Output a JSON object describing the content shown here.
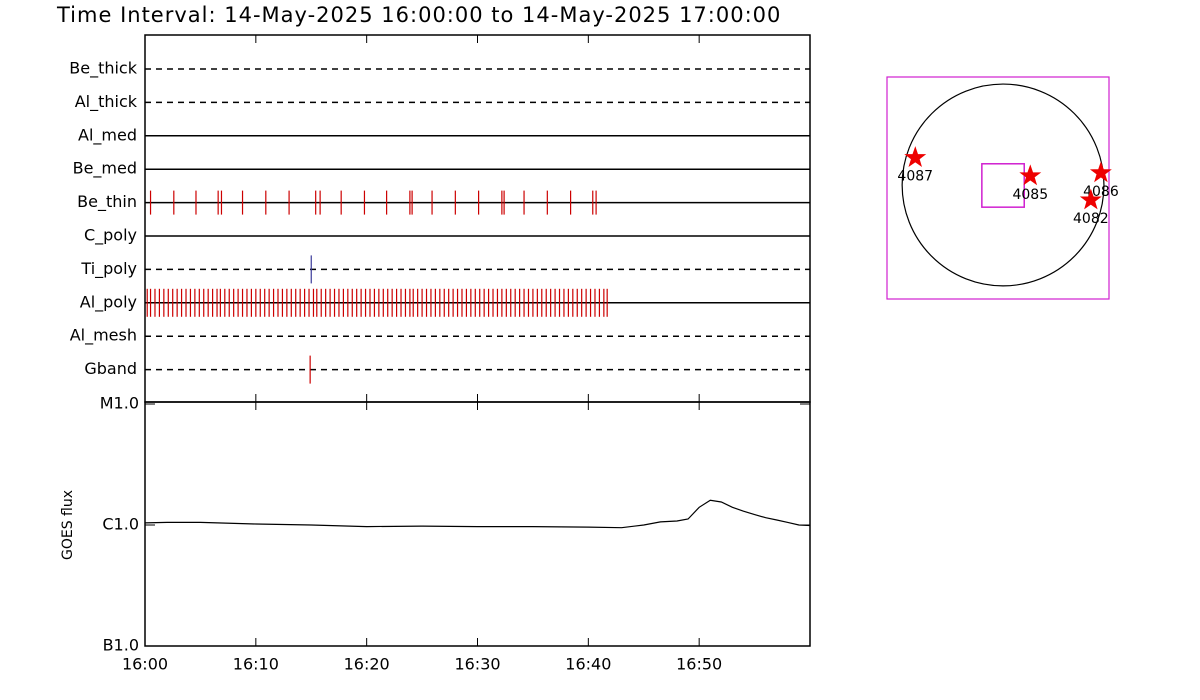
{
  "chart_data": [
    {
      "type": "timeline",
      "title": "Time Interval: 14-May-2025 16:00:00 to 14-May-2025 17:00:00",
      "xlim": [
        0,
        60
      ],
      "series": [
        {
          "name": "Be_thick",
          "dashed": true,
          "color": "#cc0000",
          "values": []
        },
        {
          "name": "Al_thick",
          "dashed": true,
          "color": "#cc0000",
          "values": []
        },
        {
          "name": "Al_med",
          "dashed": false,
          "color": "#cc0000",
          "values": []
        },
        {
          "name": "Be_med",
          "dashed": false,
          "color": "#cc0000",
          "values": []
        },
        {
          "name": "Be_thin",
          "dashed": false,
          "color": "#cc0000",
          "values": [
            0.5,
            2.6,
            4.6,
            6.6,
            6.9,
            8.8,
            10.9,
            13.0,
            15.4,
            15.8,
            17.7,
            19.8,
            21.8,
            23.9,
            24.1,
            25.9,
            28.0,
            30.1,
            32.2,
            32.4,
            34.2,
            36.3,
            38.4,
            40.4,
            40.7
          ]
        },
        {
          "name": "C_poly",
          "dashed": false,
          "color": "#cc0000",
          "values": []
        },
        {
          "name": "Ti_poly",
          "dashed": true,
          "color": "#3a3a9a",
          "values": [
            15.0
          ]
        },
        {
          "name": "Al_poly",
          "dashed": false,
          "color": "#cc0000",
          "values": [
            0.2,
            0.5,
            0.9,
            1.3,
            1.7,
            2.1,
            2.5,
            2.9,
            3.3,
            3.7,
            4.1,
            4.5,
            4.9,
            5.3,
            5.7,
            6.1,
            6.5,
            6.8,
            7.2,
            7.6,
            8.0,
            8.4,
            8.8,
            9.2,
            9.6,
            10.0,
            10.4,
            10.8,
            11.2,
            11.6,
            12.0,
            12.4,
            12.8,
            13.2,
            13.6,
            14.0,
            14.4,
            14.8,
            15.2,
            15.5,
            15.9,
            16.3,
            16.7,
            17.1,
            17.5,
            17.9,
            18.3,
            18.7,
            19.1,
            19.5,
            19.9,
            20.3,
            20.7,
            21.1,
            21.5,
            21.9,
            22.3,
            22.7,
            23.1,
            23.5,
            23.9,
            24.2,
            24.6,
            25.0,
            25.4,
            25.8,
            26.2,
            26.6,
            27.0,
            27.4,
            27.8,
            28.2,
            28.6,
            29.0,
            29.4,
            29.8,
            30.2,
            30.6,
            31.0,
            31.4,
            31.8,
            32.2,
            32.6,
            33.0,
            33.4,
            33.8,
            34.2,
            34.6,
            35.0,
            35.4,
            35.8,
            36.2,
            36.6,
            37.0,
            37.4,
            37.8,
            38.2,
            38.6,
            39.0,
            39.4,
            39.8,
            40.2,
            40.6,
            41.0,
            41.4,
            41.7
          ]
        },
        {
          "name": "Al_mesh",
          "dashed": true,
          "color": "#cc0000",
          "values": []
        },
        {
          "name": "Gband",
          "dashed": true,
          "color": "#cc0000",
          "values": [
            14.9
          ]
        }
      ]
    },
    {
      "type": "line",
      "ylabel": "GOES flux",
      "log_scale": true,
      "color": "#000000",
      "xlim": [
        0,
        60
      ],
      "xticks": [
        {
          "value": 0,
          "label": "16:00"
        },
        {
          "value": 10,
          "label": "16:10"
        },
        {
          "value": 20,
          "label": "16:20"
        },
        {
          "value": 30,
          "label": "16:30"
        },
        {
          "value": 40,
          "label": "16:40"
        },
        {
          "value": 50,
          "label": "16:50"
        }
      ],
      "ylim": [
        1e-07,
        1e-05
      ],
      "yticks": [
        {
          "value": 1e-07,
          "label": "B1.0"
        },
        {
          "value": 1e-06,
          "label": "C1.0"
        },
        {
          "value": 1e-05,
          "label": "M1.0"
        }
      ],
      "x": [
        0,
        2,
        5,
        10,
        15,
        20,
        25,
        30,
        35,
        40,
        43,
        45,
        46.5,
        48,
        49,
        50,
        51,
        52,
        53,
        54,
        55,
        56,
        57,
        58,
        59,
        60
      ],
      "values": [
        1.04e-06,
        1.05e-06,
        1.05e-06,
        1.02e-06,
        1e-06,
        9.7e-07,
        9.8e-07,
        9.7e-07,
        9.7e-07,
        9.6e-07,
        9.5e-07,
        1e-06,
        1.06e-06,
        1.08e-06,
        1.12e-06,
        1.4e-06,
        1.6e-06,
        1.55e-06,
        1.4e-06,
        1.3e-06,
        1.22e-06,
        1.15e-06,
        1.1e-06,
        1.05e-06,
        1e-06,
        9.9e-07
      ]
    },
    {
      "type": "map",
      "xlim": [
        -1.15,
        1.05
      ],
      "ylim": [
        -1.13,
        1.07
      ],
      "fov": {
        "xlim": [
          -0.21,
          0.21
        ],
        "ylim": [
          -0.22,
          0.21
        ]
      },
      "points": [
        {
          "label": "4087",
          "x": -0.87,
          "y": 0.27
        },
        {
          "label": "4085",
          "x": 0.27,
          "y": 0.09
        },
        {
          "label": "4086",
          "x": 0.97,
          "y": 0.12
        },
        {
          "label": "4082",
          "x": 0.87,
          "y": -0.15
        }
      ]
    }
  ]
}
